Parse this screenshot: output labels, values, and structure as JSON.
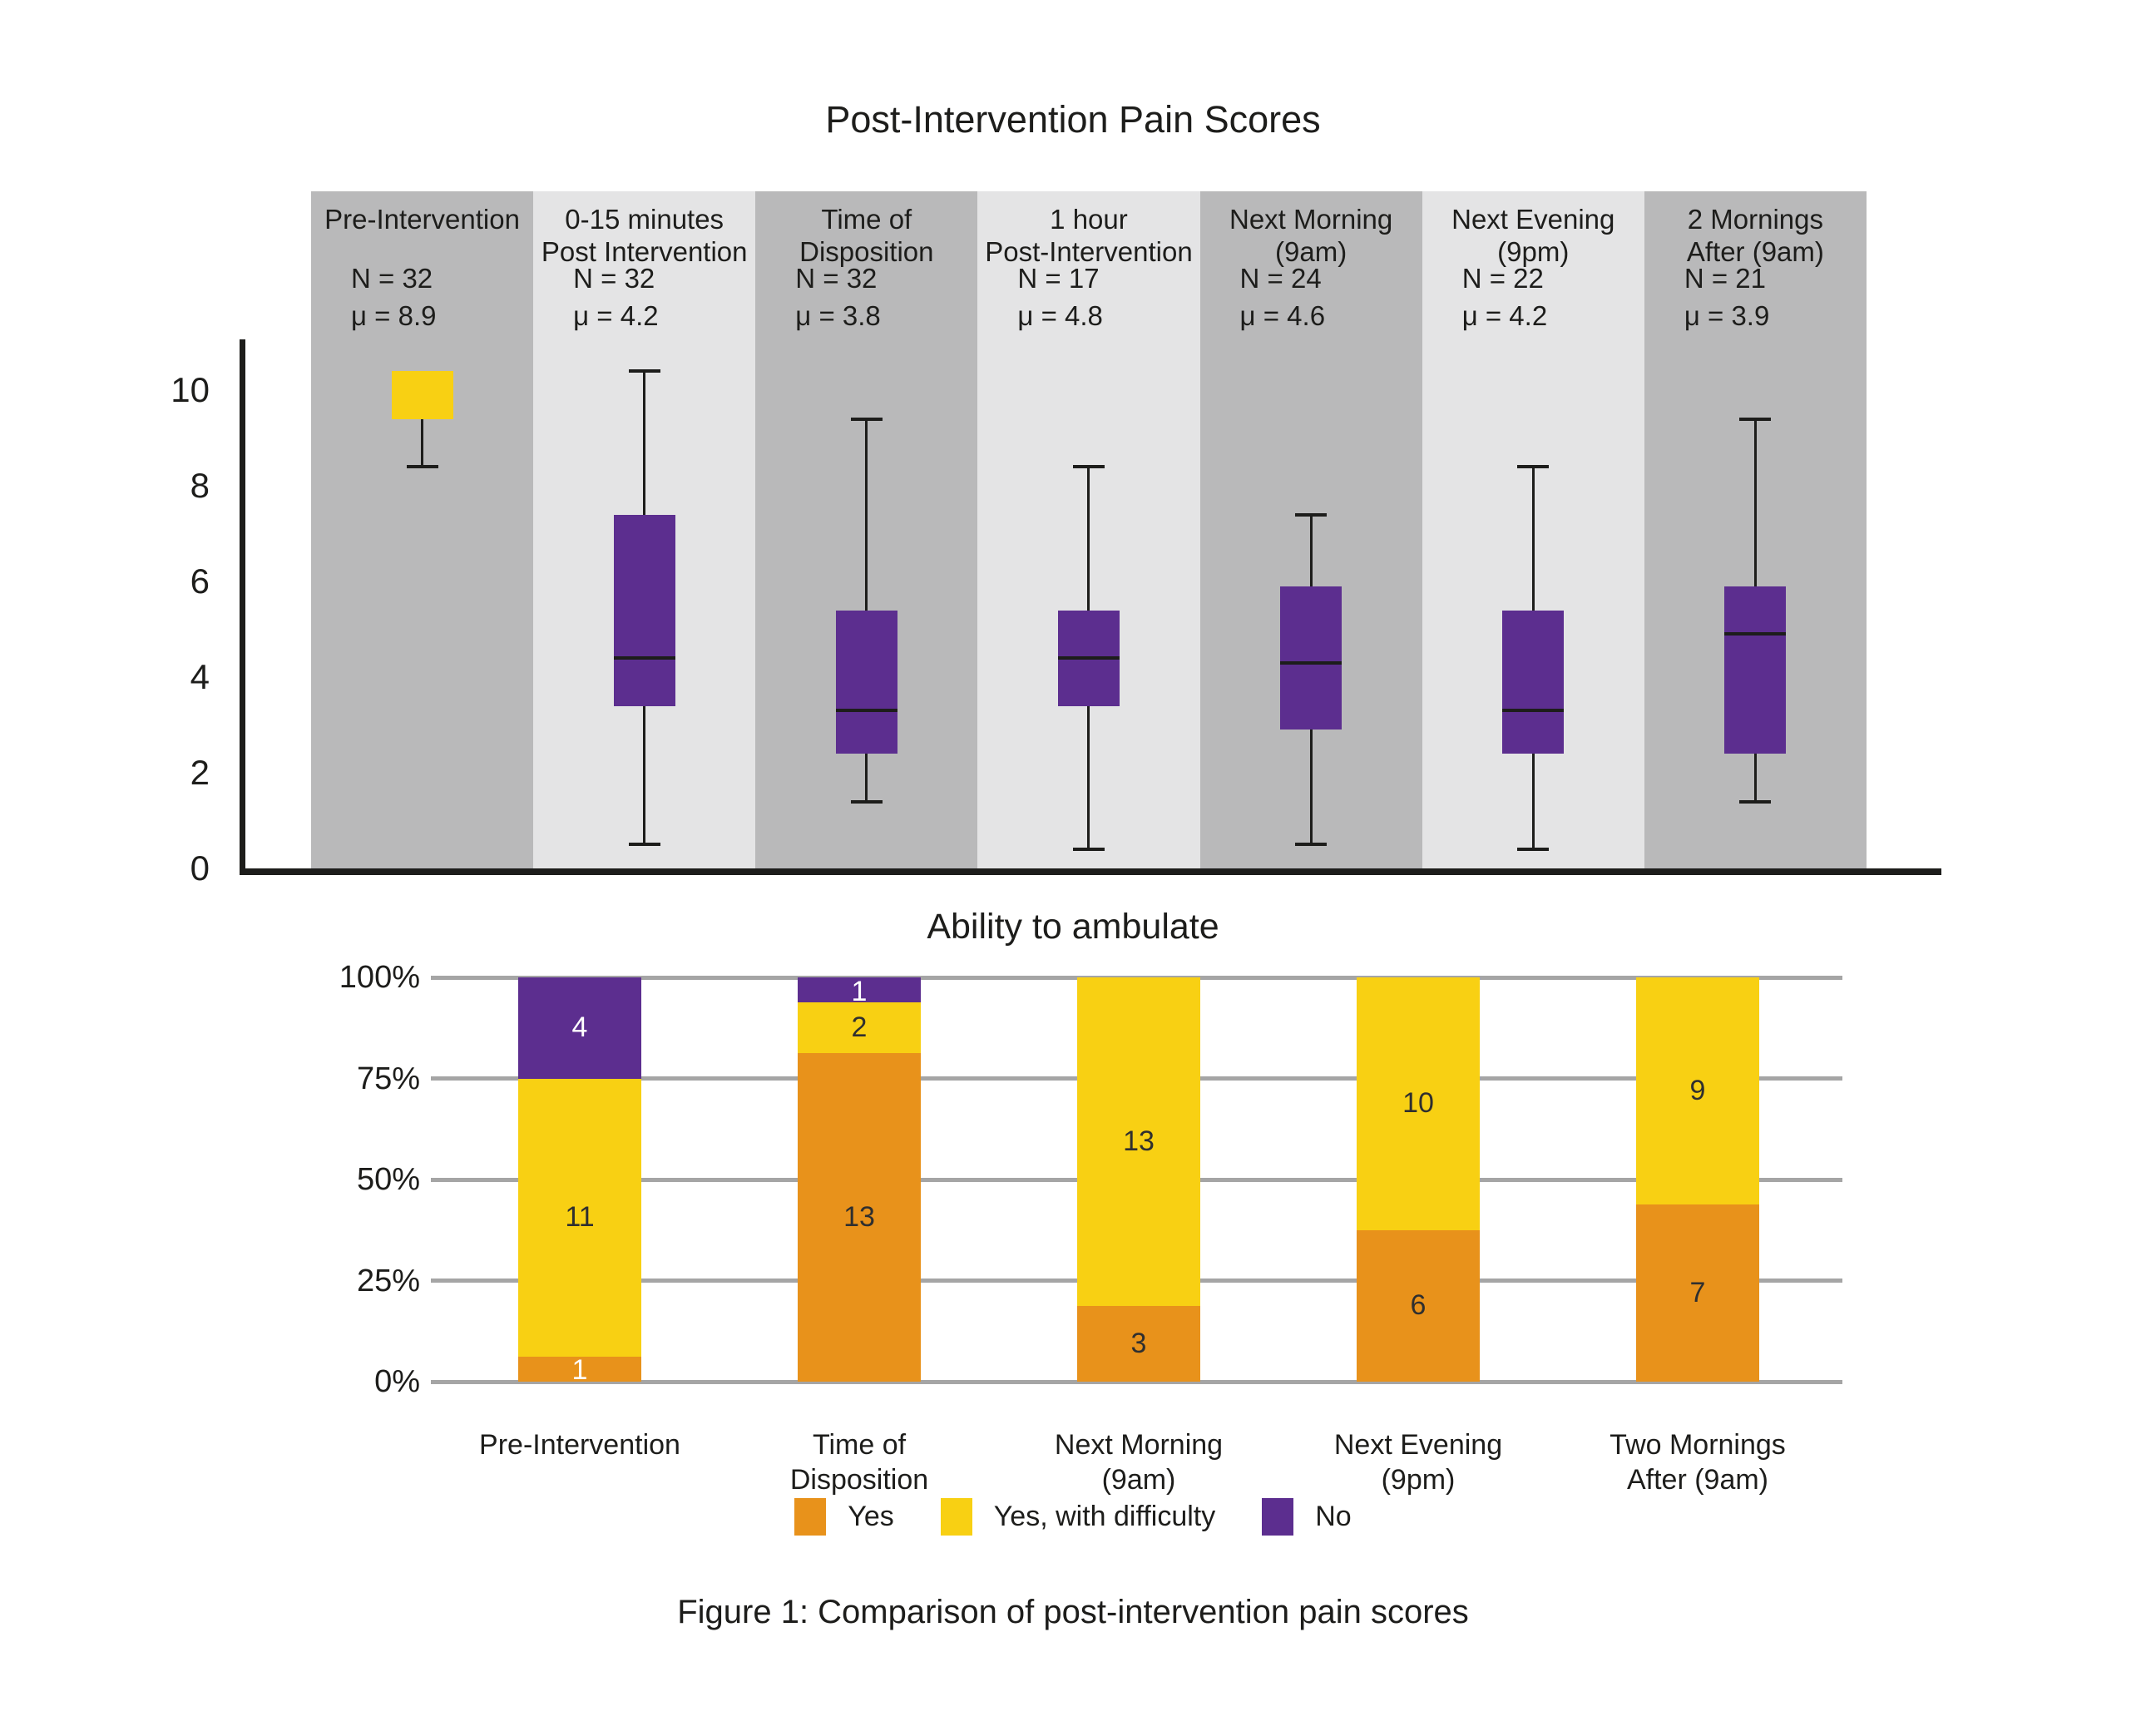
{
  "figure": {
    "title_top": "Post-Intervention Pain Scores",
    "title_bottom": "Ability to ambulate",
    "caption": "Figure 1: Comparison of post-intervention pain scores"
  },
  "colors": {
    "orange": "#E8921B",
    "yellow": "#F8D013",
    "purple": "#5C2E8F",
    "band_dark": "#B9B9BA",
    "band_light": "#E4E4E5",
    "grid": "#A5A5A5",
    "axis": "#1D1D1B",
    "text": "#1D1D1B",
    "label_dark": "#2F2F2F",
    "label_light": "#FFFFFF"
  },
  "chart_data": [
    {
      "type": "boxplot",
      "title": "Post-Intervention Pain Scores",
      "ylabel": "",
      "ylim": [
        0,
        11
      ],
      "yticks": [
        0,
        2,
        4,
        6,
        8,
        10
      ],
      "grid": false,
      "groups": [
        {
          "label_lines": [
            "Pre-Intervention"
          ],
          "n_label": "N = 32",
          "mu_label": "μ = 8.9",
          "band": "dark",
          "box_color": "yellow",
          "whisker_low": 8.4,
          "q1": 9.4,
          "median": null,
          "q3": 10.4,
          "whisker_high": null
        },
        {
          "label_lines": [
            "0-15 minutes",
            "Post Intervention"
          ],
          "n_label": "N = 32",
          "mu_label": "μ = 4.2",
          "band": "light",
          "box_color": "purple",
          "whisker_low": 0.5,
          "q1": 3.4,
          "median": 4.4,
          "q3": 7.4,
          "whisker_high": 10.4
        },
        {
          "label_lines": [
            "Time of",
            "Disposition"
          ],
          "n_label": "N = 32",
          "mu_label": "μ = 3.8",
          "band": "dark",
          "box_color": "purple",
          "whisker_low": 1.4,
          "q1": 2.4,
          "median": 3.3,
          "q3": 5.4,
          "whisker_high": 9.4
        },
        {
          "label_lines": [
            "1 hour",
            "Post-Intervention"
          ],
          "n_label": "N = 17",
          "mu_label": "μ = 4.8",
          "band": "light",
          "box_color": "purple",
          "whisker_low": 0.4,
          "q1": 3.4,
          "median": 4.4,
          "q3": 5.4,
          "whisker_high": 8.4
        },
        {
          "label_lines": [
            "Next Morning",
            "(9am)"
          ],
          "n_label": "N = 24",
          "mu_label": "μ = 4.6",
          "band": "dark",
          "box_color": "purple",
          "whisker_low": 0.5,
          "q1": 2.9,
          "median": 4.3,
          "q3": 5.9,
          "whisker_high": 7.4
        },
        {
          "label_lines": [
            "Next Evening",
            "(9pm)"
          ],
          "n_label": "N = 22",
          "mu_label": "μ = 4.2",
          "band": "light",
          "box_color": "purple",
          "whisker_low": 0.4,
          "q1": 2.4,
          "median": 3.3,
          "q3": 5.4,
          "whisker_high": 8.4
        },
        {
          "label_lines": [
            "2 Mornings",
            "After (9am)"
          ],
          "n_label": "N = 21",
          "mu_label": "μ = 3.9",
          "band": "dark",
          "box_color": "purple",
          "whisker_low": 1.4,
          "q1": 2.4,
          "median": 4.9,
          "q3": 5.9,
          "whisker_high": 9.4
        }
      ]
    },
    {
      "type": "bar",
      "subtype": "stacked-100pct",
      "title": "Ability to ambulate",
      "total_per_bar": 16,
      "yticks_pct": [
        0,
        25,
        50,
        75,
        100
      ],
      "grid": true,
      "legend_position": "bottom",
      "legend": [
        {
          "key": "yes",
          "label": "Yes",
          "color_key": "orange"
        },
        {
          "key": "yes_difficulty",
          "label": "Yes, with difficulty",
          "color_key": "yellow"
        },
        {
          "key": "no",
          "label": "No",
          "color_key": "purple"
        }
      ],
      "categories": [
        {
          "label_lines": [
            "Pre-Intervention"
          ],
          "yes": 1,
          "yes_difficulty": 11,
          "no": 4,
          "yes_label_light": true
        },
        {
          "label_lines": [
            "Time of",
            "Disposition"
          ],
          "yes": 13,
          "yes_difficulty": 2,
          "no": 1,
          "yes_label_light": false
        },
        {
          "label_lines": [
            "Next Morning",
            "(9am)"
          ],
          "yes": 3,
          "yes_difficulty": 13,
          "no": 0,
          "yes_label_light": false
        },
        {
          "label_lines": [
            "Next Evening",
            "(9pm)"
          ],
          "yes": 6,
          "yes_difficulty": 10,
          "no": 0,
          "yes_label_light": false
        },
        {
          "label_lines": [
            "Two Mornings",
            "After (9am)"
          ],
          "yes": 7,
          "yes_difficulty": 9,
          "no": 0,
          "yes_label_light": false
        }
      ]
    }
  ]
}
